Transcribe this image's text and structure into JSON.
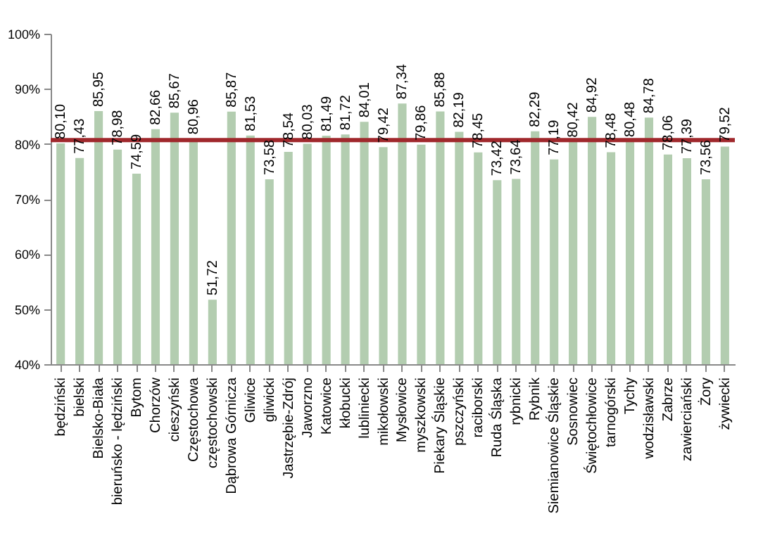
{
  "chart_data": {
    "type": "bar",
    "categories": [
      "będziński",
      "bielski",
      "Bielsko-Biała",
      "bieruńsko - lędziński",
      "Bytom",
      "Chorzów",
      "cieszyński",
      "Częstochowa",
      "częstochowski",
      "Dąbrowa Górnicza",
      "Gliwice",
      "gliwicki",
      "Jastrzębie-Zdrój",
      "Jaworzno",
      "Katowice",
      "kłobucki",
      "lubliniecki",
      "mikołowski",
      "Mysłowice",
      "myszkowski",
      "Piekary Śląskie",
      "pszczyński",
      "raciborski",
      "Ruda Śląska",
      "rybnicki",
      "Rybnik",
      "Siemianowice Śląskie",
      "Sosnowiec",
      "Świętochłowice",
      "tarnogórski",
      "Tychy",
      "wodzisławski",
      "Zabrze",
      "zawierciański",
      "Żory",
      "żywiecki"
    ],
    "values": [
      80.1,
      77.43,
      85.95,
      78.98,
      74.59,
      82.66,
      85.67,
      80.96,
      51.72,
      85.87,
      81.53,
      73.58,
      78.54,
      80.03,
      81.49,
      81.72,
      84.01,
      79.42,
      87.34,
      79.86,
      85.88,
      82.19,
      78.45,
      73.42,
      73.64,
      82.29,
      77.19,
      80.42,
      84.92,
      78.48,
      80.48,
      84.78,
      78.06,
      77.39,
      73.56,
      79.52
    ],
    "value_labels": [
      "80,10",
      "77,43",
      "85,95",
      "78,98",
      "74,59",
      "82,66",
      "85,67",
      "80,96",
      "51,72",
      "85,87",
      "81,53",
      "73,58",
      "78,54",
      "80,03",
      "81,49",
      "81,72",
      "84,01",
      "79,42",
      "87,34",
      "79,86",
      "85,88",
      "82,19",
      "78,45",
      "73,42",
      "73,64",
      "82,29",
      "77,19",
      "80,42",
      "84,92",
      "78,48",
      "80,48",
      "84,78",
      "78,06",
      "77,39",
      "73,56",
      "79,52"
    ],
    "color": "#b3cdb0",
    "ylim": [
      40,
      100
    ],
    "yticks": [
      {
        "value": 40,
        "label": "40%"
      },
      {
        "value": 50,
        "label": "50%"
      },
      {
        "value": 60,
        "label": "60%"
      },
      {
        "value": 70,
        "label": "70%"
      },
      {
        "value": 80,
        "label": "80%"
      },
      {
        "value": 90,
        "label": "90%"
      },
      {
        "value": 100,
        "label": "100%"
      }
    ],
    "ref_lines": [
      {
        "axis": "y",
        "value": 80.7,
        "color": "#a0282c"
      }
    ],
    "grid": false
  }
}
